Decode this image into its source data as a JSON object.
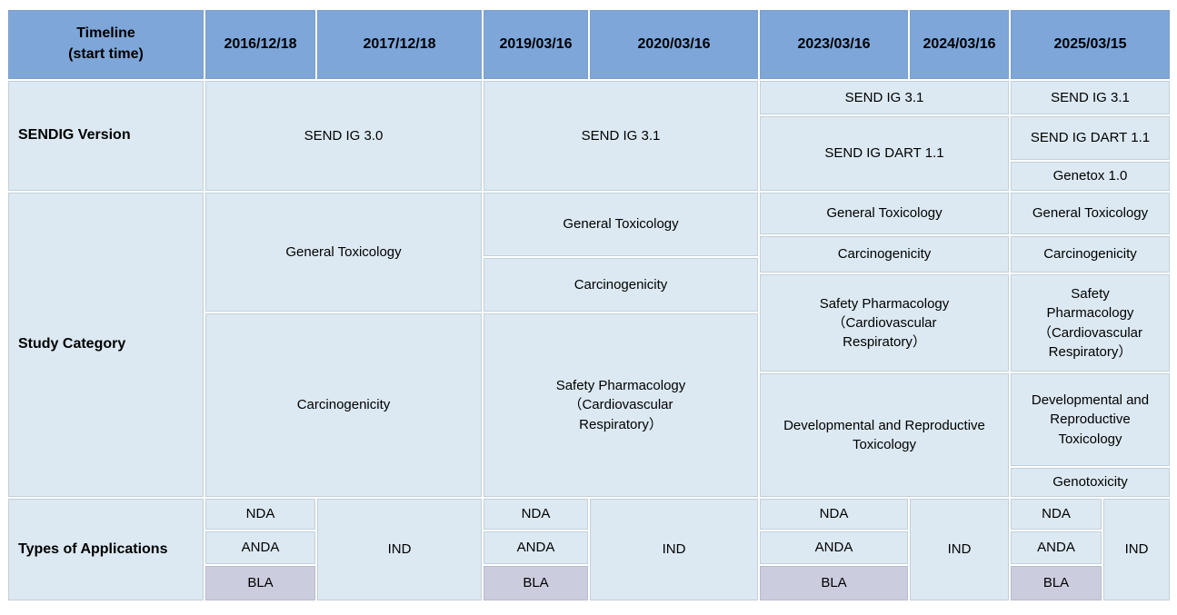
{
  "colors": {
    "header_bg": "#7EA6D8",
    "cell_bg": "#DCE9F2",
    "bla_bg": "#CCCCDF"
  },
  "header": {
    "timeline": "Timeline\n(start time)",
    "dates": [
      "2016/12/18",
      "2017/12/18",
      "2019/03/16",
      "2020/03/16",
      "2023/03/16",
      "2024/03/16",
      "2025/03/15"
    ]
  },
  "sendig": {
    "label": "SENDIG Version",
    "v30_2016_2017": "SEND IG 3.0",
    "v31_2019_2020": "SEND IG 3.1",
    "v31_2023_2024": "SEND IG 3.1",
    "dart_2023_2024": "SEND IG DART 1.1",
    "v31_2025": "SEND IG 3.1",
    "dart_2025": "SEND IG DART 1.1",
    "genetox_2025": "Genetox 1.0"
  },
  "study": {
    "label": "Study Category",
    "gentox_2016_2017": "General Toxicology",
    "carcino_2016_2017": "Carcinogenicity",
    "gentox_2019_2020": "General Toxicology",
    "carcino_2019_2020": "Carcinogenicity",
    "safpharm_2019_2020": "Safety Pharmacology\n（Cardiovascular\nRespiratory）",
    "gentox_2023_2024": "General Toxicology",
    "carcino_2023_2024": "Carcinogenicity",
    "safpharm_2023_2024": "Safety Pharmacology\n（Cardiovascular\nRespiratory）",
    "dart_2023_2024": "Developmental and Reproductive\nToxicology",
    "gentox_2025": "General Toxicology",
    "carcino_2025": "Carcinogenicity",
    "safpharm_2025": "Safety\nPharmacology\n（Cardiovascular\nRespiratory）",
    "dart_2025": "Developmental and\nReproductive\nToxicology",
    "genotox_2025": "Genotoxicity"
  },
  "apps": {
    "label": "Types of Applications",
    "nda": "NDA",
    "anda": "ANDA",
    "bla": "BLA",
    "ind": "IND"
  }
}
